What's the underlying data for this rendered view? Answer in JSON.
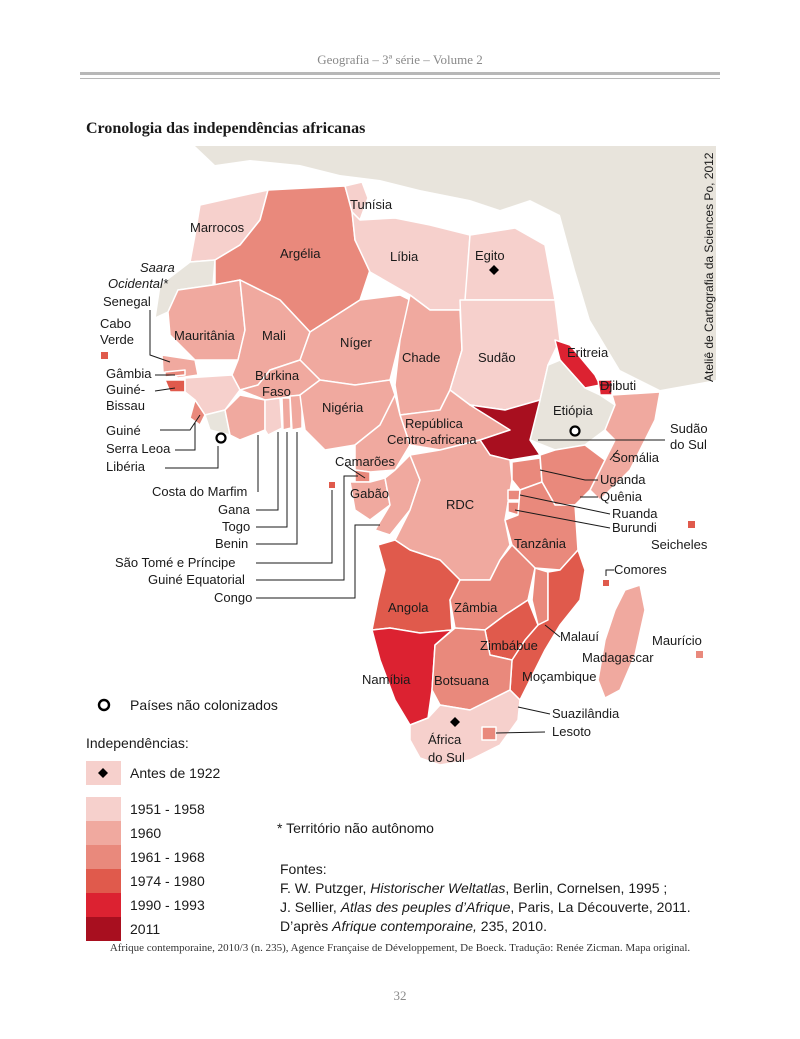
{
  "page": {
    "header": "Geografia – 3ª série – Volume 2",
    "title": "Cronologia das independências africanas",
    "footer": "Afrique contemporaine, 2010/3 (n. 235), Agence Française de Développement, De Boeck. Tradução: Renée Zicman. Mapa original.",
    "page_number": "32"
  },
  "map": {
    "credit": "Ateliê de Cartografia da Sciences Po, 2012",
    "labels": {
      "marrocos": "Marrocos",
      "saara1": "Saara",
      "saara2": "Ocidental*",
      "senegal": "Senegal",
      "caboverde1": "Cabo",
      "caboverde2": "Verde",
      "gambia": "Gâmbia",
      "guinebissau1": "Guiné-",
      "guinebissau2": "Bissau",
      "guine": "Guiné",
      "serraleoa": "Serra Leoa",
      "liberia": "Libéria",
      "mauritania": "Mauritânia",
      "mali": "Mali",
      "argelia": "Argélia",
      "tunisia": "Tunísia",
      "libia": "Líbia",
      "egito": "Egito",
      "niger": "Níger",
      "chade": "Chade",
      "sudao": "Sudão",
      "eritreia": "Eritreia",
      "djibuti": "Djibuti",
      "etiopia": "Etiópia",
      "sudaodosul1": "Sudão",
      "sudaodosul2": "do Sul",
      "somalia": "Somália",
      "burkina1": "Burkina",
      "burkina2": "Faso",
      "nigeria": "Nigéria",
      "rca1": "República",
      "rca2": "Centro-africana",
      "camaroes": "Camarões",
      "gabao": "Gabão",
      "rdc": "RDC",
      "uganda": "Uganda",
      "quenia": "Quênia",
      "ruanda": "Ruanda",
      "burundi": "Burundi",
      "seicheles": "Seicheles",
      "tanzania": "Tanzânia",
      "costamarfim": "Costa do Marfim",
      "gana": "Gana",
      "togo": "Togo",
      "benin": "Benin",
      "saotome": "São Tomé e Príncipe",
      "guineequatorial": "Guiné Equatorial",
      "congo": "Congo",
      "comores": "Comores",
      "angola": "Angola",
      "zambia": "Zâmbia",
      "malaui": "Malauí",
      "mauricio": "Maurício",
      "madagascar": "Madagascar",
      "zimbabue": "Zimbábue",
      "namibia": "Namíbia",
      "botsuana": "Botsuana",
      "mocambique": "Moçambique",
      "suazilandia": "Suazilândia",
      "lesoto": "Lesoto",
      "africadosul1": "África",
      "africadosul2": "do Sul"
    }
  },
  "legend": {
    "uncolonized": "Países não colonizados",
    "heading": "Independências:",
    "before1922": "Antes de 1922",
    "classes": [
      {
        "label": "1951 - 1958",
        "color": "#f6d0cc"
      },
      {
        "label": "1960",
        "color": "#f0a99f"
      },
      {
        "label": "1961 - 1968",
        "color": "#e9897c"
      },
      {
        "label": "1974 - 1980",
        "color": "#e05a4c"
      },
      {
        "label": "1990 - 1993",
        "color": "#dc2231"
      },
      {
        "label": "2011",
        "color": "#a80f1f"
      }
    ],
    "colors": {
      "ocean": "#ffffff",
      "land_other": "#e8e4dc",
      "border": "#ffffff",
      "before1922": "#f6d0cc"
    }
  },
  "note": "* Território não autônomo",
  "sources": {
    "heading": "Fontes:",
    "line1_pre": "F. W. Putzger, ",
    "line1_em": "Historischer Weltatlas",
    "line1_post": ", Berlin, Cornelsen, 1995 ;",
    "line2_pre": "J. Sellier, ",
    "line2_em": "Atlas des peuples d’Afrique",
    "line2_post": ", Paris, La Découverte, 2011.",
    "line3_pre": "D’après ",
    "line3_em": "Afrique contemporaine,",
    "line3_post": " 235, 2010."
  }
}
